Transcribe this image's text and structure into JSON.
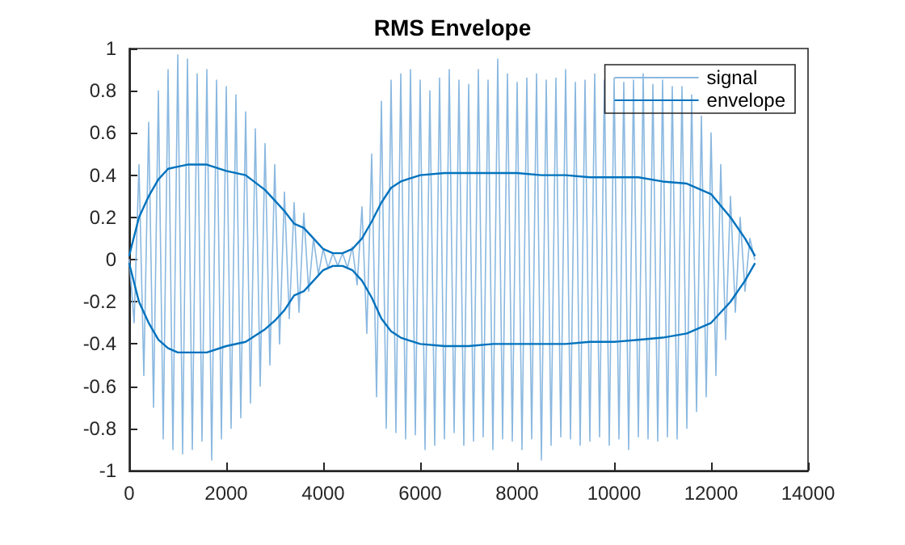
{
  "chart_data": {
    "type": "line",
    "title": "RMS Envelope",
    "xlim": [
      0,
      14000
    ],
    "xticks": [
      0,
      2000,
      4000,
      6000,
      8000,
      10000,
      12000,
      14000
    ],
    "ylim": [
      -1,
      1
    ],
    "yticks": [
      -1,
      -0.8,
      -0.6,
      -0.4,
      -0.2,
      0,
      0.2,
      0.4,
      0.6,
      0.8,
      1
    ],
    "grid": false,
    "legend": "top right",
    "marker": "none",
    "line_style": "solid",
    "series": [
      {
        "name": "signal",
        "color": "#8ab8e0",
        "x": [
          0,
          100,
          200,
          300,
          400,
          500,
          600,
          700,
          800,
          900,
          1000,
          1100,
          1200,
          1300,
          1400,
          1500,
          1600,
          1700,
          1800,
          1900,
          2000,
          2100,
          2200,
          2300,
          2400,
          2500,
          2600,
          2700,
          2800,
          2900,
          3000,
          3100,
          3200,
          3300,
          3400,
          3500,
          3600,
          3700,
          3800,
          3900,
          4000,
          4100,
          4200,
          4300,
          4400,
          4500,
          4600,
          4700,
          4800,
          4900,
          5000,
          5100,
          5200,
          5300,
          5400,
          5500,
          5600,
          5700,
          5800,
          5900,
          6000,
          6100,
          6200,
          6300,
          6400,
          6500,
          6600,
          6700,
          6800,
          6900,
          7000,
          7100,
          7200,
          7300,
          7400,
          7500,
          7600,
          7700,
          7800,
          7900,
          8000,
          8100,
          8200,
          8300,
          8400,
          8500,
          8600,
          8700,
          8800,
          8900,
          9000,
          9100,
          9200,
          9300,
          9400,
          9500,
          9600,
          9700,
          9800,
          9900,
          10000,
          10100,
          10200,
          10300,
          10400,
          10500,
          10600,
          10700,
          10800,
          10900,
          11000,
          11100,
          11200,
          11300,
          11400,
          11500,
          11600,
          11700,
          11800,
          11900,
          12000,
          12100,
          12200,
          12300,
          12400,
          12500,
          12600,
          12700,
          12800,
          12900
        ],
        "values": [
          0,
          -0.3,
          0.45,
          -0.55,
          0.65,
          -0.7,
          0.8,
          -0.85,
          0.9,
          -0.9,
          0.97,
          -0.92,
          0.95,
          -0.9,
          0.88,
          -0.86,
          0.9,
          -0.95,
          0.85,
          -0.85,
          0.82,
          -0.8,
          0.78,
          -0.75,
          0.7,
          -0.68,
          0.62,
          -0.6,
          0.55,
          -0.5,
          0.45,
          -0.4,
          0.32,
          -0.28,
          0.27,
          -0.25,
          0.22,
          -0.15,
          0.1,
          -0.07,
          0.05,
          -0.04,
          0.03,
          -0.03,
          0.03,
          -0.04,
          0.06,
          -0.12,
          0.25,
          -0.35,
          0.5,
          -0.65,
          0.75,
          -0.8,
          0.85,
          -0.82,
          0.88,
          -0.85,
          0.9,
          -0.83,
          0.85,
          -0.9,
          0.8,
          -0.88,
          0.86,
          -0.85,
          0.9,
          -0.82,
          0.85,
          -0.88,
          0.83,
          -0.86,
          0.9,
          -0.84,
          0.85,
          -0.9,
          0.95,
          -0.85,
          0.88,
          -0.86,
          0.84,
          -0.9,
          0.86,
          -0.85,
          0.88,
          -0.95,
          0.85,
          -0.88,
          0.86,
          -0.84,
          0.9,
          -0.85,
          0.84,
          -0.88,
          0.85,
          -0.86,
          0.88,
          -0.84,
          0.85,
          -0.88,
          0.86,
          -0.85,
          0.84,
          -0.9,
          0.85,
          -0.84,
          0.88,
          -0.85,
          0.83,
          -0.86,
          0.85,
          -0.84,
          0.82,
          -0.85,
          0.82,
          -0.8,
          0.78,
          -0.72,
          0.68,
          -0.65,
          0.6,
          -0.55,
          0.45,
          -0.38,
          0.3,
          -0.25,
          0.2,
          -0.15,
          0.1,
          0
        ]
      },
      {
        "name": "envelope",
        "color": "#0072bd",
        "x": [
          0,
          200,
          400,
          600,
          800,
          1000,
          1200,
          1600,
          2000,
          2400,
          2800,
          3000,
          3200,
          3400,
          3600,
          3800,
          4000,
          4200,
          4400,
          4600,
          4800,
          5000,
          5200,
          5400,
          5600,
          6000,
          6500,
          7000,
          7500,
          8000,
          8500,
          9000,
          9500,
          10000,
          10500,
          11000,
          11500,
          12000,
          12400,
          12700,
          12900
        ],
        "values": [
          0.02,
          0.2,
          0.3,
          0.38,
          0.43,
          0.44,
          0.45,
          0.45,
          0.42,
          0.4,
          0.33,
          0.28,
          0.23,
          0.17,
          0.15,
          0.1,
          0.05,
          0.03,
          0.03,
          0.05,
          0.1,
          0.18,
          0.27,
          0.34,
          0.37,
          0.4,
          0.41,
          0.41,
          0.41,
          0.41,
          0.4,
          0.4,
          0.39,
          0.39,
          0.39,
          0.37,
          0.36,
          0.31,
          0.2,
          0.1,
          0.02
        ]
      },
      {
        "color": "#0072bd",
        "x": [
          0,
          200,
          400,
          600,
          800,
          1000,
          1200,
          1600,
          2000,
          2400,
          2800,
          3000,
          3200,
          3400,
          3600,
          3800,
          4000,
          4200,
          4400,
          4600,
          4800,
          5000,
          5200,
          5400,
          5600,
          6000,
          6500,
          7000,
          7500,
          8000,
          8500,
          9000,
          9500,
          10000,
          10500,
          11000,
          11500,
          12000,
          12400,
          12700,
          12900
        ],
        "values": [
          -0.02,
          -0.2,
          -0.3,
          -0.38,
          -0.42,
          -0.44,
          -0.44,
          -0.44,
          -0.41,
          -0.39,
          -0.33,
          -0.29,
          -0.24,
          -0.17,
          -0.15,
          -0.1,
          -0.05,
          -0.03,
          -0.03,
          -0.05,
          -0.1,
          -0.18,
          -0.28,
          -0.34,
          -0.37,
          -0.4,
          -0.41,
          -0.41,
          -0.4,
          -0.4,
          -0.4,
          -0.4,
          -0.39,
          -0.39,
          -0.38,
          -0.37,
          -0.35,
          -0.3,
          -0.2,
          -0.1,
          -0.02
        ]
      }
    ]
  }
}
